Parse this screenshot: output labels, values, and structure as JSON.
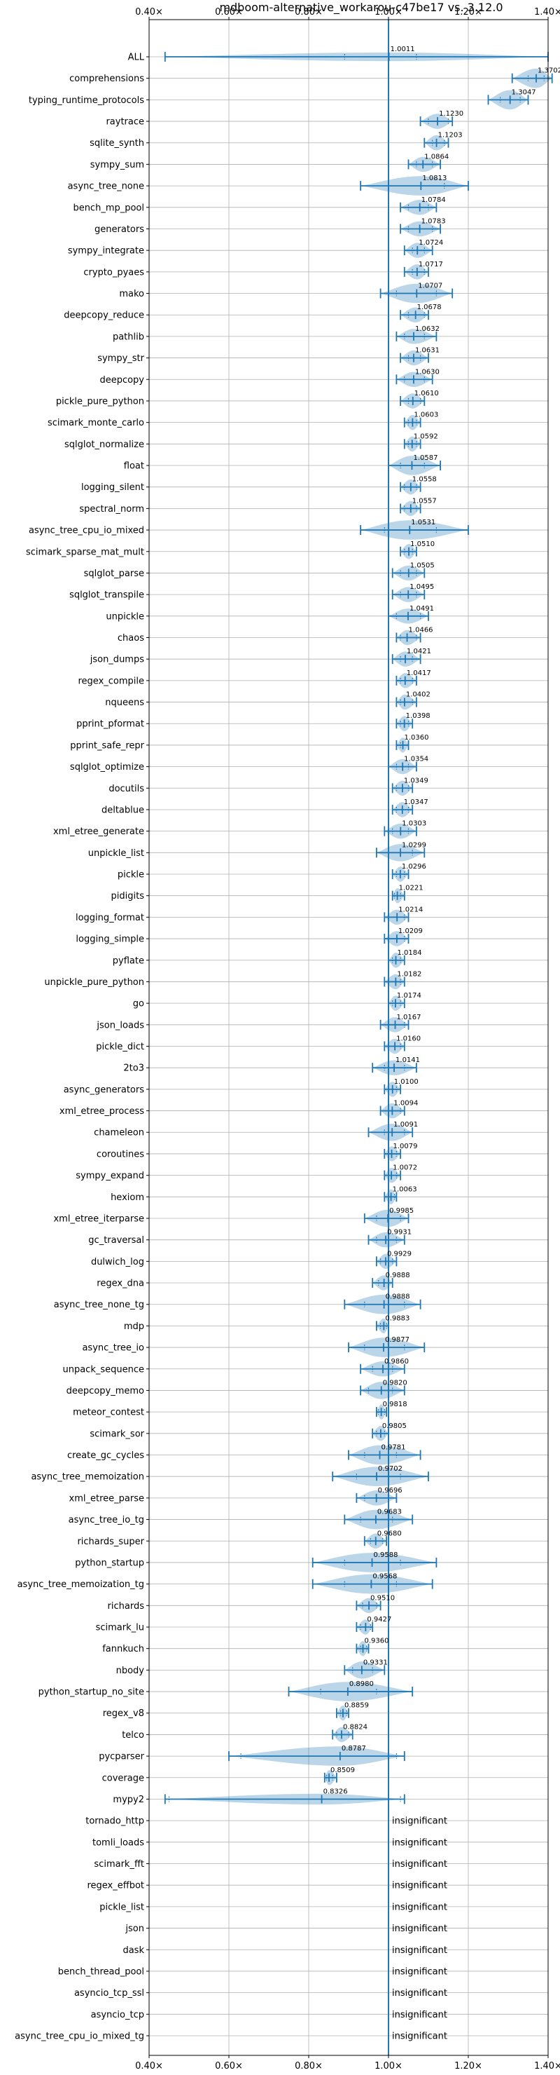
{
  "chart_data": {
    "type": "violin",
    "title": "mdboom-alternative_workarou-c47be17 vs. 3.12.0",
    "xlim": [
      0.4,
      1.4
    ],
    "x_ticks": [
      0.4,
      0.6,
      0.8,
      1.0,
      1.2,
      1.4
    ],
    "x_tick_labels": [
      "0.40×",
      "0.60×",
      "0.80×",
      "1.00×",
      "1.20×",
      "1.40×"
    ],
    "reference_line": 1.0,
    "grid": true,
    "color": "#1f77b4",
    "insignificant_text": "insignificant",
    "benchmarks": [
      {
        "name": "ALL",
        "value": 1.0011,
        "label": "1.0011",
        "min": 0.44,
        "max": 1.4,
        "q1": 0.89,
        "q3": 1.07,
        "width": 0.4
      },
      {
        "name": "comprehensions",
        "value": 1.3702,
        "label": "1.3702",
        "min": 1.31,
        "max": 1.41,
        "q1": 1.35,
        "q3": 1.39,
        "width": 0.9
      },
      {
        "name": "typing_runtime_protocols",
        "value": 1.3047,
        "label": "1.3047",
        "min": 1.25,
        "max": 1.35,
        "q1": 1.28,
        "q3": 1.33,
        "width": 0.9
      },
      {
        "name": "raytrace",
        "value": 1.123,
        "label": "1.1230",
        "min": 1.08,
        "max": 1.16,
        "q1": 1.1,
        "q3": 1.15,
        "width": 0.7
      },
      {
        "name": "sqlite_synth",
        "value": 1.1203,
        "label": "1.1203",
        "min": 1.09,
        "max": 1.15,
        "q1": 1.11,
        "q3": 1.14,
        "width": 0.7
      },
      {
        "name": "sympy_sum",
        "value": 1.0864,
        "label": "1.0864",
        "min": 1.05,
        "max": 1.13,
        "q1": 1.07,
        "q3": 1.11,
        "width": 0.7
      },
      {
        "name": "async_tree_none",
        "value": 1.0813,
        "label": "1.0813",
        "min": 0.93,
        "max": 1.2,
        "q1": 1.0,
        "q3": 1.14,
        "width": 0.9
      },
      {
        "name": "bench_mp_pool",
        "value": 1.0784,
        "label": "1.0784",
        "min": 1.03,
        "max": 1.12,
        "q1": 1.05,
        "q3": 1.1,
        "width": 0.7
      },
      {
        "name": "generators",
        "value": 1.0783,
        "label": "1.0783",
        "min": 1.03,
        "max": 1.13,
        "q1": 1.05,
        "q3": 1.11,
        "width": 0.7
      },
      {
        "name": "sympy_integrate",
        "value": 1.0724,
        "label": "1.0724",
        "min": 1.04,
        "max": 1.11,
        "q1": 1.06,
        "q3": 1.09,
        "width": 0.7
      },
      {
        "name": "crypto_pyaes",
        "value": 1.0717,
        "label": "1.0717",
        "min": 1.04,
        "max": 1.1,
        "q1": 1.06,
        "q3": 1.09,
        "width": 0.7
      },
      {
        "name": "mako",
        "value": 1.0707,
        "label": "1.0707",
        "min": 0.98,
        "max": 1.16,
        "q1": 1.02,
        "q3": 1.12,
        "width": 0.9
      },
      {
        "name": "deepcopy_reduce",
        "value": 1.0678,
        "label": "1.0678",
        "min": 1.03,
        "max": 1.1,
        "q1": 1.05,
        "q3": 1.09,
        "width": 0.7
      },
      {
        "name": "pathlib",
        "value": 1.0632,
        "label": "1.0632",
        "min": 1.02,
        "max": 1.12,
        "q1": 1.04,
        "q3": 1.09,
        "width": 0.7
      },
      {
        "name": "sympy_str",
        "value": 1.0631,
        "label": "1.0631",
        "min": 1.03,
        "max": 1.1,
        "q1": 1.05,
        "q3": 1.08,
        "width": 0.7
      },
      {
        "name": "deepcopy",
        "value": 1.063,
        "label": "1.0630",
        "min": 1.02,
        "max": 1.11,
        "q1": 1.04,
        "q3": 1.09,
        "width": 0.7
      },
      {
        "name": "pickle_pure_python",
        "value": 1.061,
        "label": "1.0610",
        "min": 1.03,
        "max": 1.09,
        "q1": 1.05,
        "q3": 1.08,
        "width": 0.7
      },
      {
        "name": "scimark_monte_carlo",
        "value": 1.0603,
        "label": "1.0603",
        "min": 1.04,
        "max": 1.08,
        "q1": 1.05,
        "q3": 1.07,
        "width": 0.7
      },
      {
        "name": "sqlglot_normalize",
        "value": 1.0592,
        "label": "1.0592",
        "min": 1.04,
        "max": 1.08,
        "q1": 1.05,
        "q3": 1.07,
        "width": 0.7
      },
      {
        "name": "float",
        "value": 1.0587,
        "label": "1.0587",
        "min": 1.0,
        "max": 1.13,
        "q1": 1.03,
        "q3": 1.09,
        "width": 0.9
      },
      {
        "name": "logging_silent",
        "value": 1.0558,
        "label": "1.0558",
        "min": 1.03,
        "max": 1.08,
        "q1": 1.04,
        "q3": 1.07,
        "width": 0.7
      },
      {
        "name": "spectral_norm",
        "value": 1.0557,
        "label": "1.0557",
        "min": 1.03,
        "max": 1.08,
        "q1": 1.04,
        "q3": 1.07,
        "width": 0.7
      },
      {
        "name": "async_tree_cpu_io_mixed",
        "value": 1.0531,
        "label": "1.0531",
        "min": 0.93,
        "max": 1.2,
        "q1": 0.99,
        "q3": 1.12,
        "width": 0.9
      },
      {
        "name": "scimark_sparse_mat_mult",
        "value": 1.051,
        "label": "1.0510",
        "min": 1.03,
        "max": 1.07,
        "q1": 1.04,
        "q3": 1.06,
        "width": 0.7
      },
      {
        "name": "sqlglot_parse",
        "value": 1.0505,
        "label": "1.0505",
        "min": 1.01,
        "max": 1.09,
        "q1": 1.03,
        "q3": 1.07,
        "width": 0.7
      },
      {
        "name": "sqlglot_transpile",
        "value": 1.0495,
        "label": "1.0495",
        "min": 1.01,
        "max": 1.09,
        "q1": 1.03,
        "q3": 1.07,
        "width": 0.7
      },
      {
        "name": "unpickle",
        "value": 1.0491,
        "label": "1.0491",
        "min": 1.0,
        "max": 1.1,
        "q1": 1.02,
        "q3": 1.08,
        "width": 0.7
      },
      {
        "name": "chaos",
        "value": 1.0466,
        "label": "1.0466",
        "min": 1.02,
        "max": 1.08,
        "q1": 1.03,
        "q3": 1.07,
        "width": 0.7
      },
      {
        "name": "json_dumps",
        "value": 1.0421,
        "label": "1.0421",
        "min": 1.01,
        "max": 1.08,
        "q1": 1.03,
        "q3": 1.06,
        "width": 0.7
      },
      {
        "name": "regex_compile",
        "value": 1.0417,
        "label": "1.0417",
        "min": 1.02,
        "max": 1.07,
        "q1": 1.03,
        "q3": 1.06,
        "width": 0.7
      },
      {
        "name": "nqueens",
        "value": 1.0402,
        "label": "1.0402",
        "min": 1.02,
        "max": 1.07,
        "q1": 1.03,
        "q3": 1.06,
        "width": 0.7
      },
      {
        "name": "pprint_pformat",
        "value": 1.0398,
        "label": "1.0398",
        "min": 1.02,
        "max": 1.06,
        "q1": 1.03,
        "q3": 1.05,
        "width": 0.7
      },
      {
        "name": "pprint_safe_repr",
        "value": 1.036,
        "label": "1.0360",
        "min": 1.02,
        "max": 1.05,
        "q1": 1.03,
        "q3": 1.05,
        "width": 0.7
      },
      {
        "name": "sqlglot_optimize",
        "value": 1.0354,
        "label": "1.0354",
        "min": 1.0,
        "max": 1.07,
        "q1": 1.02,
        "q3": 1.05,
        "width": 0.7
      },
      {
        "name": "docutils",
        "value": 1.0349,
        "label": "1.0349",
        "min": 1.01,
        "max": 1.06,
        "q1": 1.02,
        "q3": 1.05,
        "width": 0.7
      },
      {
        "name": "deltablue",
        "value": 1.0347,
        "label": "1.0347",
        "min": 1.01,
        "max": 1.06,
        "q1": 1.02,
        "q3": 1.05,
        "width": 0.7
      },
      {
        "name": "xml_etree_generate",
        "value": 1.0303,
        "label": "1.0303",
        "min": 0.99,
        "max": 1.07,
        "q1": 1.01,
        "q3": 1.05,
        "width": 0.7
      },
      {
        "name": "unpickle_list",
        "value": 1.0299,
        "label": "1.0299",
        "min": 0.97,
        "max": 1.09,
        "q1": 1.0,
        "q3": 1.06,
        "width": 0.8
      },
      {
        "name": "pickle",
        "value": 1.0296,
        "label": "1.0296",
        "min": 1.01,
        "max": 1.05,
        "q1": 1.02,
        "q3": 1.04,
        "width": 0.7
      },
      {
        "name": "pidigits",
        "value": 1.0221,
        "label": "1.0221",
        "min": 1.01,
        "max": 1.04,
        "q1": 1.015,
        "q3": 1.03,
        "width": 0.7
      },
      {
        "name": "logging_format",
        "value": 1.0214,
        "label": "1.0214",
        "min": 0.99,
        "max": 1.05,
        "q1": 1.0,
        "q3": 1.04,
        "width": 0.7
      },
      {
        "name": "logging_simple",
        "value": 1.0209,
        "label": "1.0209",
        "min": 0.99,
        "max": 1.05,
        "q1": 1.0,
        "q3": 1.04,
        "width": 0.7
      },
      {
        "name": "pyflate",
        "value": 1.0184,
        "label": "1.0184",
        "min": 1.0,
        "max": 1.04,
        "q1": 1.01,
        "q3": 1.03,
        "width": 0.7
      },
      {
        "name": "unpickle_pure_python",
        "value": 1.0182,
        "label": "1.0182",
        "min": 0.99,
        "max": 1.04,
        "q1": 1.0,
        "q3": 1.03,
        "width": 0.7
      },
      {
        "name": "go",
        "value": 1.0174,
        "label": "1.0174",
        "min": 1.0,
        "max": 1.04,
        "q1": 1.01,
        "q3": 1.03,
        "width": 0.7
      },
      {
        "name": "json_loads",
        "value": 1.0167,
        "label": "1.0167",
        "min": 0.98,
        "max": 1.05,
        "q1": 1.0,
        "q3": 1.04,
        "width": 0.7
      },
      {
        "name": "pickle_dict",
        "value": 1.016,
        "label": "1.0160",
        "min": 0.99,
        "max": 1.04,
        "q1": 1.0,
        "q3": 1.03,
        "width": 0.7
      },
      {
        "name": "2to3",
        "value": 1.0141,
        "label": "1.0141",
        "min": 0.96,
        "max": 1.07,
        "q1": 0.99,
        "q3": 1.04,
        "width": 0.7
      },
      {
        "name": "async_generators",
        "value": 1.01,
        "label": "1.0100",
        "min": 0.99,
        "max": 1.03,
        "q1": 1.0,
        "q3": 1.02,
        "width": 0.7
      },
      {
        "name": "xml_etree_process",
        "value": 1.0094,
        "label": "1.0094",
        "min": 0.98,
        "max": 1.04,
        "q1": 1.0,
        "q3": 1.03,
        "width": 0.7
      },
      {
        "name": "chameleon",
        "value": 1.0091,
        "label": "1.0091",
        "min": 0.95,
        "max": 1.06,
        "q1": 0.99,
        "q3": 1.04,
        "width": 0.8
      },
      {
        "name": "coroutines",
        "value": 1.0079,
        "label": "1.0079",
        "min": 0.99,
        "max": 1.03,
        "q1": 1.0,
        "q3": 1.02,
        "width": 0.7
      },
      {
        "name": "sympy_expand",
        "value": 1.0072,
        "label": "1.0072",
        "min": 0.99,
        "max": 1.03,
        "q1": 1.0,
        "q3": 1.02,
        "width": 0.7
      },
      {
        "name": "hexiom",
        "value": 1.0063,
        "label": "1.0063",
        "min": 0.99,
        "max": 1.02,
        "q1": 1.0,
        "q3": 1.015,
        "width": 0.7
      },
      {
        "name": "xml_etree_iterparse",
        "value": 0.9985,
        "label": "0.9985",
        "min": 0.94,
        "max": 1.05,
        "q1": 0.97,
        "q3": 1.03,
        "width": 0.8
      },
      {
        "name": "gc_traversal",
        "value": 0.9931,
        "label": "0.9931",
        "min": 0.95,
        "max": 1.04,
        "q1": 0.97,
        "q3": 1.02,
        "width": 0.7
      },
      {
        "name": "dulwich_log",
        "value": 0.9929,
        "label": "0.9929",
        "min": 0.97,
        "max": 1.02,
        "q1": 0.98,
        "q3": 1.01,
        "width": 0.7
      },
      {
        "name": "regex_dna",
        "value": 0.9888,
        "label": "0.9888",
        "min": 0.96,
        "max": 1.01,
        "q1": 0.975,
        "q3": 1.0,
        "width": 0.7
      },
      {
        "name": "async_tree_none_tg",
        "value": 0.9888,
        "label": "0.9888",
        "min": 0.89,
        "max": 1.08,
        "q1": 0.94,
        "q3": 1.04,
        "width": 0.9
      },
      {
        "name": "mdp",
        "value": 0.9883,
        "label": "0.9883",
        "min": 0.97,
        "max": 1.0,
        "q1": 0.98,
        "q3": 0.995,
        "width": 0.7
      },
      {
        "name": "async_tree_io",
        "value": 0.9877,
        "label": "0.9877",
        "min": 0.9,
        "max": 1.09,
        "q1": 0.94,
        "q3": 1.04,
        "width": 0.9
      },
      {
        "name": "unpack_sequence",
        "value": 0.986,
        "label": "0.9860",
        "min": 0.93,
        "max": 1.04,
        "q1": 0.96,
        "q3": 1.01,
        "width": 0.7
      },
      {
        "name": "deepcopy_memo",
        "value": 0.982,
        "label": "0.9820",
        "min": 0.93,
        "max": 1.04,
        "q1": 0.95,
        "q3": 1.01,
        "width": 0.8
      },
      {
        "name": "meteor_contest",
        "value": 0.9818,
        "label": "0.9818",
        "min": 0.97,
        "max": 0.995,
        "q1": 0.975,
        "q3": 0.99,
        "width": 0.7
      },
      {
        "name": "scimark_sor",
        "value": 0.9805,
        "label": "0.9805",
        "min": 0.96,
        "max": 1.0,
        "q1": 0.97,
        "q3": 0.99,
        "width": 0.7
      },
      {
        "name": "create_gc_cycles",
        "value": 0.9781,
        "label": "0.9781",
        "min": 0.9,
        "max": 1.08,
        "q1": 0.94,
        "q3": 1.02,
        "width": 0.9
      },
      {
        "name": "async_tree_memoization",
        "value": 0.9702,
        "label": "0.9702",
        "min": 0.86,
        "max": 1.1,
        "q1": 0.92,
        "q3": 1.03,
        "width": 0.9
      },
      {
        "name": "xml_etree_parse",
        "value": 0.9696,
        "label": "0.9696",
        "min": 0.92,
        "max": 1.02,
        "q1": 0.94,
        "q3": 1.0,
        "width": 0.7
      },
      {
        "name": "async_tree_io_tg",
        "value": 0.9683,
        "label": "0.9683",
        "min": 0.89,
        "max": 1.06,
        "q1": 0.93,
        "q3": 1.01,
        "width": 0.9
      },
      {
        "name": "richards_super",
        "value": 0.968,
        "label": "0.9680",
        "min": 0.94,
        "max": 0.995,
        "q1": 0.955,
        "q3": 0.985,
        "width": 0.7
      },
      {
        "name": "python_startup",
        "value": 0.9588,
        "label": "0.9588",
        "min": 0.81,
        "max": 1.12,
        "q1": 0.89,
        "q3": 1.03,
        "width": 0.9
      },
      {
        "name": "async_tree_memoization_tg",
        "value": 0.9568,
        "label": "0.9568",
        "min": 0.81,
        "max": 1.11,
        "q1": 0.89,
        "q3": 1.02,
        "width": 0.9
      },
      {
        "name": "richards",
        "value": 0.951,
        "label": "0.9510",
        "min": 0.92,
        "max": 0.98,
        "q1": 0.935,
        "q3": 0.97,
        "width": 0.7
      },
      {
        "name": "scimark_lu",
        "value": 0.9427,
        "label": "0.9427",
        "min": 0.92,
        "max": 0.96,
        "q1": 0.93,
        "q3": 0.955,
        "width": 0.7
      },
      {
        "name": "fannkuch",
        "value": 0.936,
        "label": "0.9360",
        "min": 0.92,
        "max": 0.95,
        "q1": 0.93,
        "q3": 0.945,
        "width": 0.7
      },
      {
        "name": "nbody",
        "value": 0.9331,
        "label": "0.9331",
        "min": 0.89,
        "max": 0.99,
        "q1": 0.91,
        "q3": 0.96,
        "width": 0.8
      },
      {
        "name": "python_startup_no_site",
        "value": 0.898,
        "label": "0.8980",
        "min": 0.75,
        "max": 1.06,
        "q1": 0.83,
        "q3": 0.97,
        "width": 0.9
      },
      {
        "name": "regex_v8",
        "value": 0.8859,
        "label": "0.8859",
        "min": 0.87,
        "max": 0.9,
        "q1": 0.88,
        "q3": 0.895,
        "width": 0.7
      },
      {
        "name": "telco",
        "value": 0.8824,
        "label": "0.8824",
        "min": 0.86,
        "max": 0.91,
        "q1": 0.87,
        "q3": 0.9,
        "width": 0.7
      },
      {
        "name": "pycparser",
        "value": 0.8787,
        "label": "0.8787",
        "min": 0.6,
        "max": 1.04,
        "q1": 0.63,
        "q3": 1.02,
        "width": 0.9
      },
      {
        "name": "coverage",
        "value": 0.8509,
        "label": "0.8509",
        "min": 0.84,
        "max": 0.87,
        "q1": 0.845,
        "q3": 0.86,
        "width": 0.7
      },
      {
        "name": "mypy2",
        "value": 0.8326,
        "label": "0.8326",
        "min": 0.44,
        "max": 1.04,
        "q1": 0.45,
        "q3": 1.03,
        "width": 0.5
      }
    ],
    "insignificant": [
      "tornado_http",
      "tomli_loads",
      "scimark_fft",
      "regex_effbot",
      "pickle_list",
      "json",
      "dask",
      "bench_thread_pool",
      "asyncio_tcp_ssl",
      "asyncio_tcp",
      "async_tree_cpu_io_mixed_tg"
    ]
  }
}
